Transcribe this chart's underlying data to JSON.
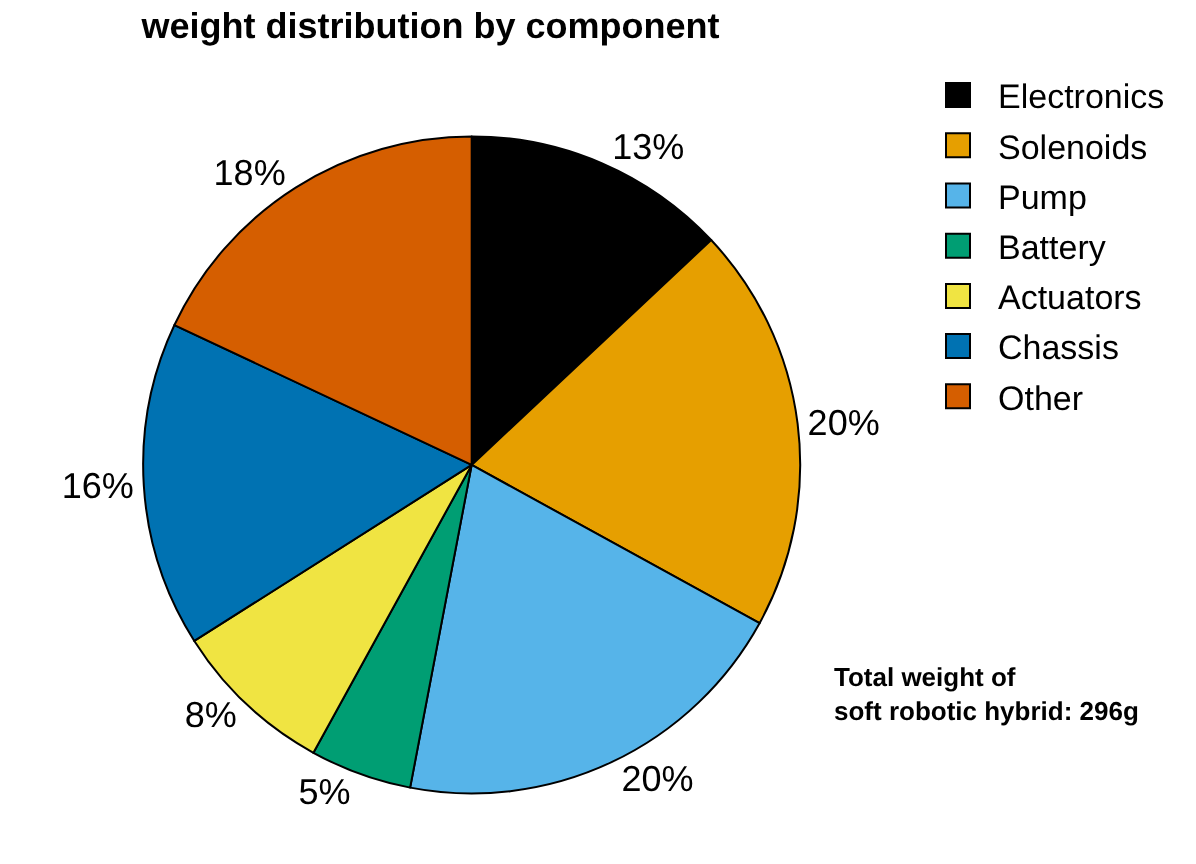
{
  "chart_data": {
    "type": "pie",
    "title": "weight distribution by component",
    "categories": [
      "Electronics",
      "Solenoids",
      "Pump",
      "Battery",
      "Actuators",
      "Chassis",
      "Other"
    ],
    "values": [
      13,
      20,
      20,
      5,
      8,
      16,
      18
    ],
    "value_labels": [
      "13%",
      "20%",
      "20%",
      "5%",
      "8%",
      "16%",
      "18%"
    ],
    "colors": [
      "#000000",
      "#e69f00",
      "#56b4e9",
      "#009e73",
      "#f0e442",
      "#0072b2",
      "#d55e00"
    ],
    "legend": "top right",
    "annotations": [
      "Total weight of\nsoft robotic hybrid: 296g"
    ]
  }
}
